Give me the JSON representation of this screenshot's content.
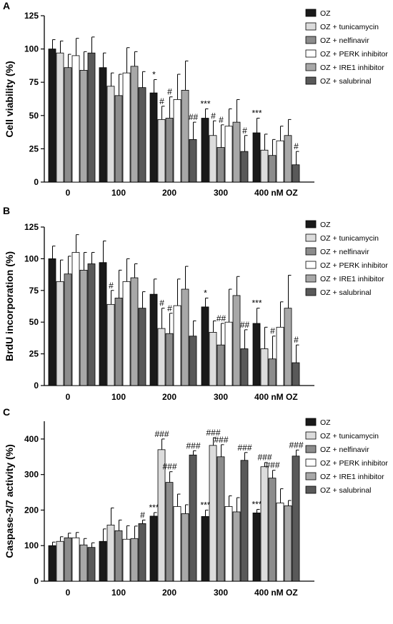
{
  "legend": [
    {
      "name": "OZ",
      "color": "#1a1a1a"
    },
    {
      "name": "OZ + tunicamycin",
      "color": "#dcdcdc"
    },
    {
      "name": "OZ + nelfinavir",
      "color": "#8c8c8c"
    },
    {
      "name": "OZ + PERK inhibitor",
      "color": "#ffffff"
    },
    {
      "name": "OZ + IRE1 inhibitor",
      "color": "#a8a8a8"
    },
    {
      "name": "OZ + salubrinal",
      "color": "#595959"
    }
  ],
  "chart_data": [
    {
      "type": "bar",
      "panel": "A",
      "categories": [
        "0",
        "100",
        "200",
        "300",
        "400 nM OZ"
      ],
      "ylabel": "Cell viability (%)",
      "ylim": [
        0,
        125
      ],
      "yticks": [
        0,
        25,
        50,
        75,
        100,
        125
      ],
      "series": [
        {
          "name": "OZ",
          "values": [
            100,
            86,
            67,
            48,
            37
          ],
          "errors": [
            7,
            11,
            10,
            7,
            11
          ],
          "labels": [
            "",
            "",
            "*",
            "***",
            "***"
          ]
        },
        {
          "name": "OZ + tunicamycin",
          "values": [
            97,
            72,
            47,
            35,
            24
          ],
          "errors": [
            9,
            10,
            10,
            11,
            12
          ],
          "labels": [
            "",
            "",
            "#",
            "#",
            ""
          ]
        },
        {
          "name": "OZ + nelfinavir",
          "values": [
            86,
            65,
            48,
            26,
            20
          ],
          "errors": [
            10,
            16,
            16,
            17,
            12
          ],
          "labels": [
            "",
            "",
            "#",
            "#",
            ""
          ]
        },
        {
          "name": "OZ + PERK inhibitor",
          "values": [
            95,
            82,
            62,
            42,
            31
          ],
          "errors": [
            13,
            19,
            19,
            13,
            11
          ],
          "labels": [
            "",
            "",
            "",
            "",
            ""
          ]
        },
        {
          "name": "OZ + IRE1 inhibitor",
          "values": [
            84,
            87,
            69,
            45,
            35
          ],
          "errors": [
            14,
            11,
            22,
            17,
            12
          ],
          "labels": [
            "",
            "",
            "",
            "",
            ""
          ]
        },
        {
          "name": "OZ + salubrinal",
          "values": [
            97,
            71,
            32,
            23,
            13
          ],
          "errors": [
            12,
            12,
            13,
            12,
            10
          ],
          "labels": [
            "",
            "",
            "##",
            "#",
            "#"
          ]
        }
      ]
    },
    {
      "type": "bar",
      "panel": "B",
      "categories": [
        "0",
        "100",
        "200",
        "300",
        "400 nM OZ"
      ],
      "ylabel": "BrdU incorporation (%)",
      "ylim": [
        0,
        125
      ],
      "yticks": [
        0,
        25,
        50,
        75,
        100,
        125
      ],
      "series": [
        {
          "name": "OZ",
          "values": [
            100,
            97,
            72,
            62,
            49
          ],
          "errors": [
            10,
            17,
            12,
            7,
            12
          ],
          "labels": [
            "",
            "",
            "",
            "*",
            "***"
          ]
        },
        {
          "name": "OZ + tunicamycin",
          "values": [
            82,
            64,
            45,
            42,
            29
          ],
          "errors": [
            17,
            11,
            16,
            9,
            17
          ],
          "labels": [
            "",
            "#",
            "#",
            "",
            ""
          ]
        },
        {
          "name": "OZ + nelfinavir",
          "values": [
            88,
            69,
            41,
            32,
            21
          ],
          "errors": [
            14,
            22,
            16,
            17,
            18
          ],
          "labels": [
            "",
            "",
            "#",
            "##",
            "#"
          ]
        },
        {
          "name": "OZ + PERK inhibitor",
          "values": [
            105,
            82,
            63,
            50,
            46
          ],
          "errors": [
            14,
            18,
            21,
            26,
            20
          ],
          "labels": [
            "",
            "",
            "",
            "",
            ""
          ]
        },
        {
          "name": "OZ + IRE1 inhibitor",
          "values": [
            91,
            85,
            76,
            71,
            61
          ],
          "errors": [
            14,
            11,
            18,
            15,
            26
          ],
          "labels": [
            "",
            "",
            "",
            "",
            ""
          ]
        },
        {
          "name": "OZ + salubrinal",
          "values": [
            96,
            61,
            39,
            29,
            18
          ],
          "errors": [
            9,
            13,
            12,
            15,
            14
          ],
          "labels": [
            "",
            "",
            "",
            "##",
            "#"
          ]
        }
      ]
    },
    {
      "type": "bar",
      "panel": "C",
      "categories": [
        "0",
        "100",
        "200",
        "300",
        "400 nM OZ"
      ],
      "ylabel": "Caspase-3/7 activity (%)",
      "ylim": [
        0,
        450
      ],
      "yticks": [
        0,
        100,
        200,
        300,
        400
      ],
      "series": [
        {
          "name": "OZ",
          "values": [
            100,
            112,
            183,
            182,
            192
          ],
          "errors": [
            10,
            35,
            10,
            18,
            10
          ],
          "labels": [
            "",
            "",
            "***",
            "***",
            "***"
          ]
        },
        {
          "name": "OZ + tunicamycin",
          "values": [
            112,
            158,
            370,
            382,
            322
          ],
          "errors": [
            13,
            48,
            30,
            22,
            12
          ],
          "labels": [
            "",
            "",
            "###",
            "###",
            "###"
          ]
        },
        {
          "name": "OZ + nelfinavir",
          "values": [
            122,
            142,
            278,
            350,
            290
          ],
          "errors": [
            13,
            30,
            30,
            34,
            22
          ],
          "labels": [
            "",
            "",
            "###",
            "###",
            "###"
          ]
        },
        {
          "name": "OZ + PERK inhibitor",
          "values": [
            122,
            118,
            210,
            210,
            220
          ],
          "errors": [
            15,
            38,
            35,
            30,
            40
          ],
          "labels": [
            "",
            "",
            "",
            "",
            ""
          ]
        },
        {
          "name": "OZ + IRE1 inhibitor",
          "values": [
            102,
            120,
            190,
            195,
            212
          ],
          "errors": [
            18,
            35,
            25,
            40,
            15
          ],
          "labels": [
            "",
            "",
            "",
            "",
            ""
          ]
        },
        {
          "name": "OZ + salubrinal",
          "values": [
            95,
            162,
            355,
            340,
            352
          ],
          "errors": [
            13,
            10,
            12,
            22,
            17
          ],
          "labels": [
            "",
            "#",
            "###",
            "###",
            "###"
          ]
        }
      ]
    }
  ]
}
